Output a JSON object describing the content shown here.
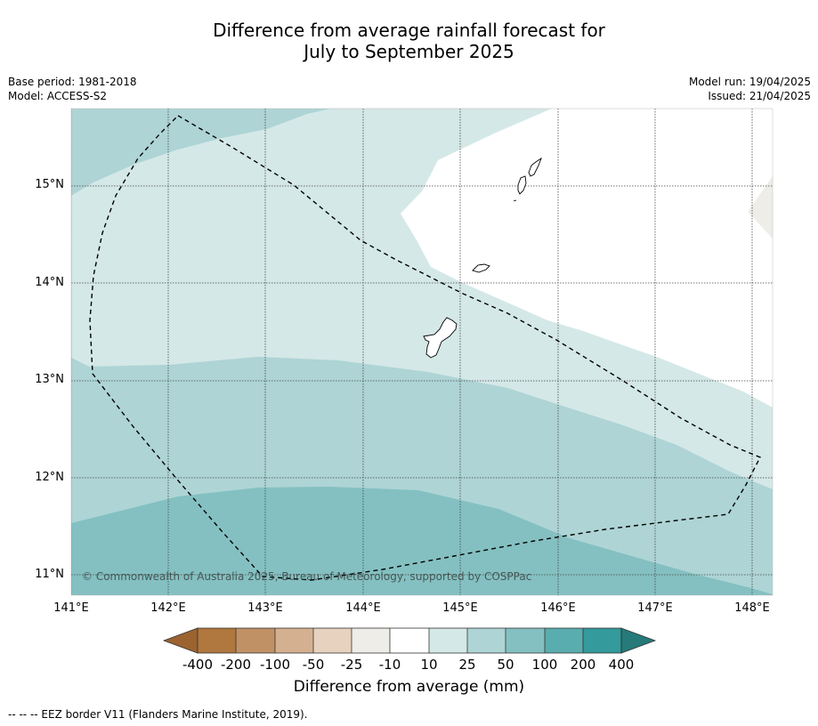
{
  "title_line1": "Difference from average rainfall forecast for",
  "title_line2": "July to September 2025",
  "meta": {
    "base_period": "Base period: 1981-2018",
    "model": "Model: ACCESS-S2",
    "model_run": "Model run: 19/04/2025",
    "issued": "Issued: 21/04/2025"
  },
  "copyright": "© Commonwealth of Australia 2025, Bureau of Meteorology, supported by COSPPac",
  "map": {
    "lat_labels": [
      "15°N",
      "14°N",
      "13°N",
      "12°N",
      "11°N"
    ],
    "lon_labels": [
      "141°E",
      "142°E",
      "143°E",
      "144°E",
      "145°E",
      "146°E",
      "147°E",
      "148°E"
    ]
  },
  "colorbar": {
    "title": "Difference from average (mm)",
    "labels": [
      "-400",
      "-200",
      "-100",
      "-50",
      "-25",
      "-10",
      "10",
      "25",
      "50",
      "100",
      "200",
      "400"
    ],
    "colors": {
      "below_-400": "#9c6330",
      "-400_-200": "#b0773e",
      "-200_-100": "#c19166",
      "-100_-50": "#d4b090",
      "-50_-25": "#e7d1bf",
      "-25_-10": "#efede8",
      "-10_10": "#ffffff",
      "10_25": "#d4e8e7",
      "25_50": "#aed4d5",
      "50_100": "#84c0c1",
      "100_200": "#5aadae",
      "200_400": "#349a9b",
      "above_400": "#267a79"
    }
  },
  "footnote": "--  --  -- EEZ border V11 (Flanders Marine Institute, 2019)."
}
